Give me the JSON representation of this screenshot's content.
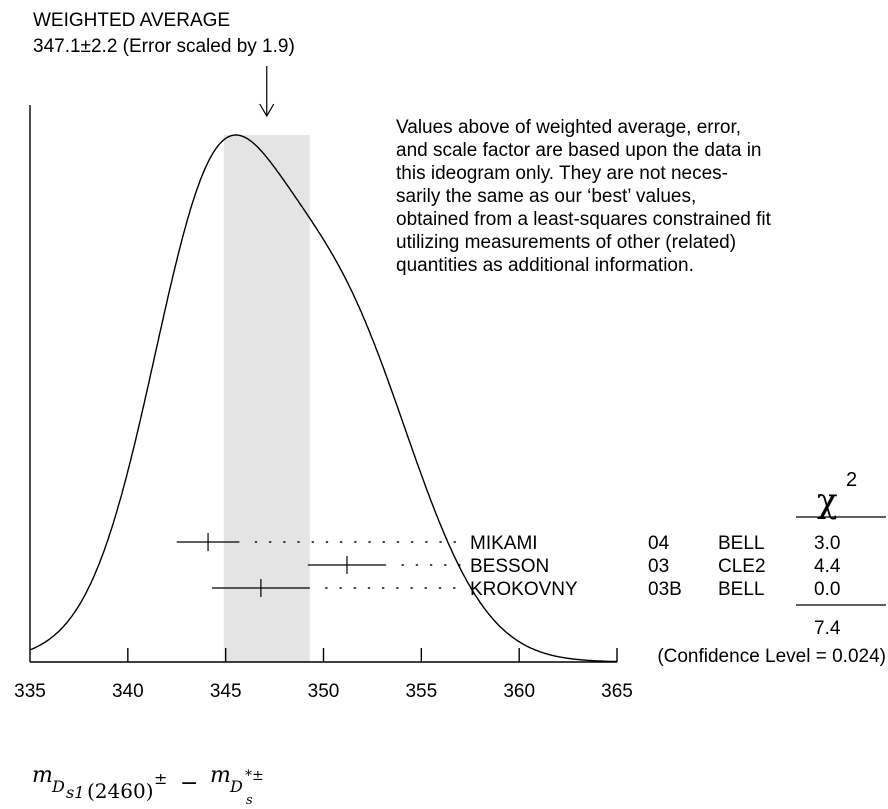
{
  "header": {
    "title": "WEIGHTED AVERAGE",
    "subtitle": "347.1±2.2 (Error scaled by 1.9)"
  },
  "note_lines": [
    "Values above of weighted average, error,",
    "and scale factor are based upon the data in",
    "this ideogram only.  They are not neces-",
    "sarily the same as our ‘best’ values,",
    "obtained from a least-squares constrained fit",
    "utilizing measurements of other (related)",
    "quantities as additional information."
  ],
  "chart_data": {
    "type": "ideogram",
    "xlim": [
      335,
      365
    ],
    "x_ticks": [
      "335",
      "340",
      "345",
      "350",
      "355",
      "360",
      "365"
    ],
    "weighted_average": {
      "value": 347.1,
      "error": 2.2,
      "scale_factor": 1.9,
      "band": [
        344.9,
        349.3
      ]
    },
    "measurements": [
      {
        "author": "MIKAMI",
        "year": "04",
        "experiment": "BELL",
        "value": 344.1,
        "error": 1.6,
        "chi2": "3.0"
      },
      {
        "author": "BESSON",
        "year": "03",
        "experiment": "CLE2",
        "value": 351.2,
        "error": 2.0,
        "chi2": "4.4"
      },
      {
        "author": "KROKOVNY",
        "year": "03B",
        "experiment": "BELL",
        "value": 346.8,
        "error": 2.5,
        "chi2": "0.0"
      }
    ],
    "chi2_header": "χ",
    "chi2_power": "2",
    "chi2_total": "7.4",
    "confidence": "(Confidence Level = 0.024)",
    "xlabel": {
      "m1": "m",
      "sub1": "D",
      "sub1b": "s1",
      "paren": "(2460)",
      "pm1": "±",
      "minus": "−",
      "m2": "m",
      "sub2": "D",
      "sub2sup": "*±",
      "sub2b": "s"
    }
  }
}
